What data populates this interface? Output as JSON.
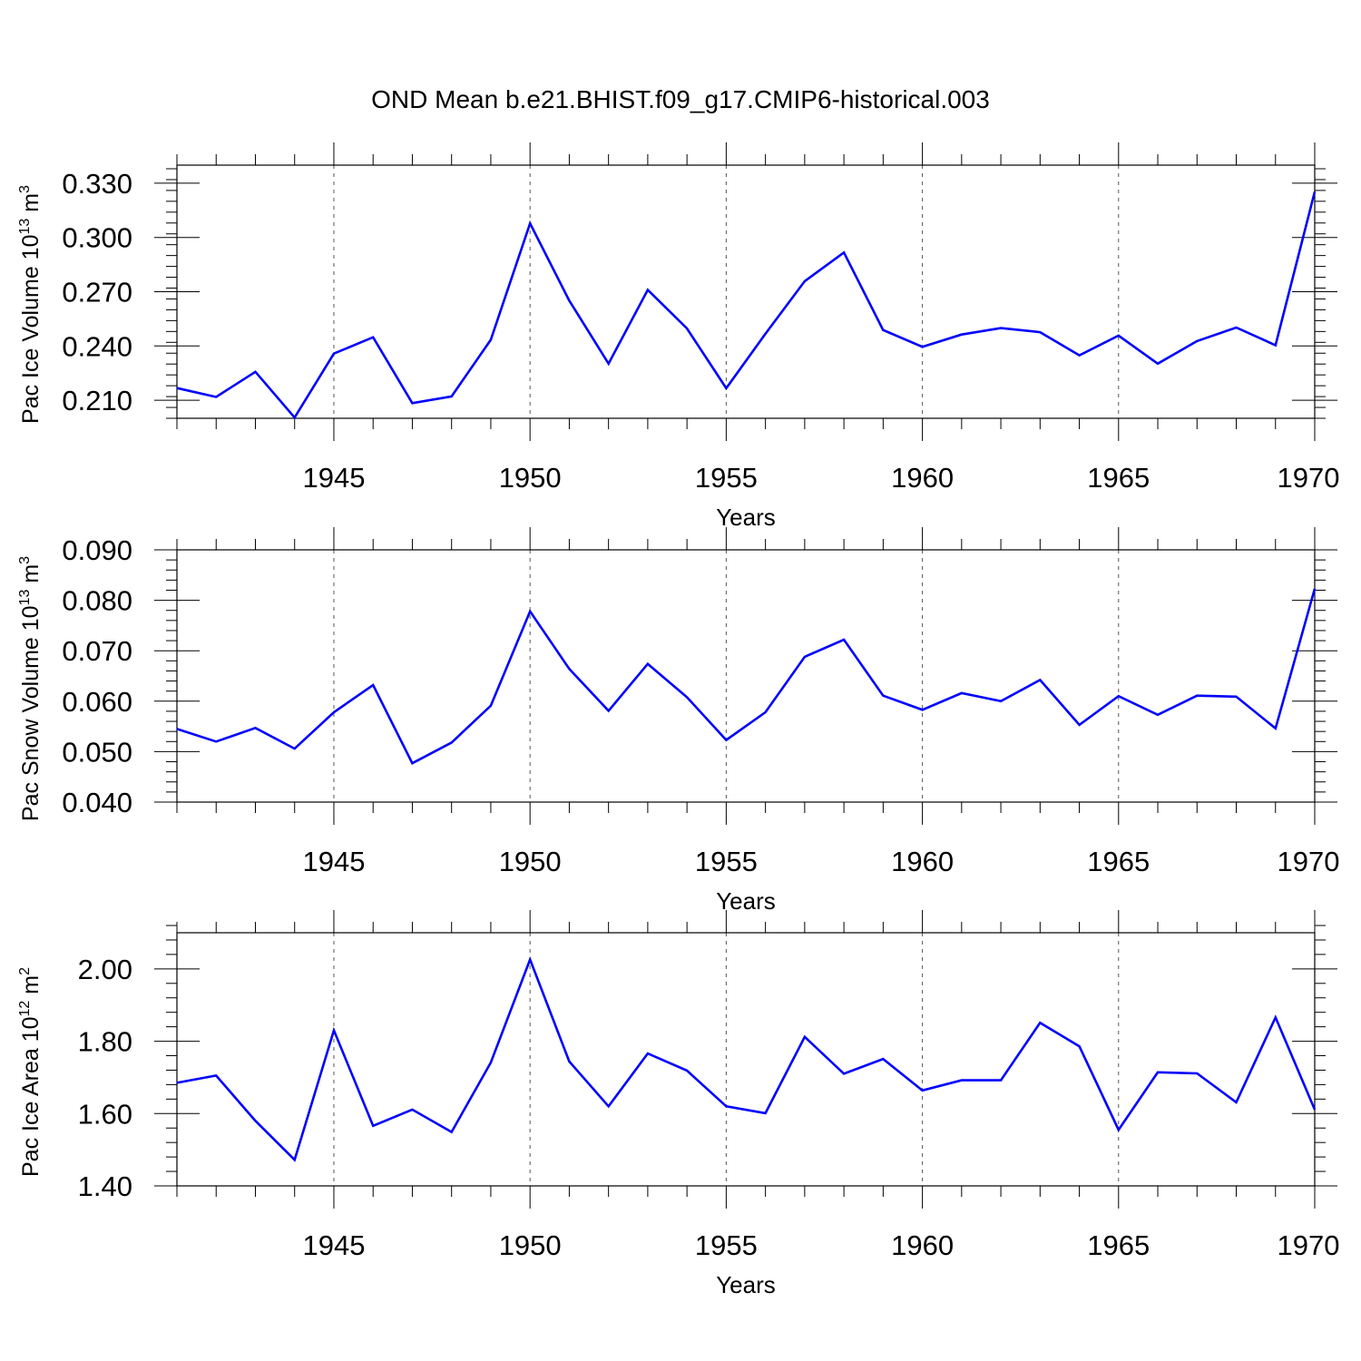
{
  "title": "OND Mean b.e21.BHIST.f09_g17.CMIP6-historical.003",
  "colors": {
    "line": "#0000ff",
    "axis": "#000000",
    "grid": "#555555"
  },
  "chart_data": [
    {
      "type": "line",
      "ylabel": "Pac Ice Volume",
      "ylabel_unit_base": "10",
      "ylabel_unit_exp": "13",
      "ylabel_unit_name": "m",
      "ylabel_unit_name_exp": "3",
      "xlabel": "Years",
      "xlim": [
        1941,
        1970
      ],
      "ylim": [
        0.2,
        0.34
      ],
      "yticks": [
        0.21,
        0.24,
        0.27,
        0.3,
        0.33
      ],
      "ytick_labels": [
        "0.210",
        "0.240",
        "0.270",
        "0.300",
        "0.330"
      ],
      "yminor_step": 0.006,
      "xticks": [
        1945,
        1950,
        1955,
        1960,
        1965,
        1970
      ],
      "xtick_labels": [
        "1945",
        "1950",
        "1955",
        "1960",
        "1965",
        "1970"
      ],
      "grid": "vertical dashed at major x ticks",
      "x": [
        1941,
        1942,
        1943,
        1944,
        1945,
        1946,
        1947,
        1948,
        1949,
        1950,
        1951,
        1952,
        1953,
        1954,
        1955,
        1956,
        1957,
        1958,
        1959,
        1960,
        1961,
        1962,
        1963,
        1964,
        1965,
        1966,
        1967,
        1968,
        1969,
        1970
      ],
      "values": [
        0.2167,
        0.2118,
        0.2257,
        0.2004,
        0.2358,
        0.2448,
        0.2084,
        0.2121,
        0.2434,
        0.3078,
        0.2651,
        0.2302,
        0.271,
        0.2497,
        0.2166,
        0.2467,
        0.2758,
        0.2917,
        0.2488,
        0.2395,
        0.2463,
        0.2499,
        0.2476,
        0.2348,
        0.2457,
        0.2302,
        0.2427,
        0.2502,
        0.2404,
        0.3253
      ]
    },
    {
      "type": "line",
      "ylabel": "Pac Snow Volume",
      "ylabel_unit_base": "10",
      "ylabel_unit_exp": "13",
      "ylabel_unit_name": "m",
      "ylabel_unit_name_exp": "3",
      "xlabel": "Years",
      "xlim": [
        1941,
        1970
      ],
      "ylim": [
        0.04,
        0.09
      ],
      "yticks": [
        0.04,
        0.05,
        0.06,
        0.07,
        0.08,
        0.09
      ],
      "ytick_labels": [
        "0.040",
        "0.050",
        "0.060",
        "0.070",
        "0.080",
        "0.090"
      ],
      "yminor_step": 0.002,
      "xticks": [
        1945,
        1950,
        1955,
        1960,
        1965,
        1970
      ],
      "xtick_labels": [
        "1945",
        "1950",
        "1955",
        "1960",
        "1965",
        "1970"
      ],
      "grid": "vertical dashed at major x ticks",
      "x": [
        1941,
        1942,
        1943,
        1944,
        1945,
        1946,
        1947,
        1948,
        1949,
        1950,
        1951,
        1952,
        1953,
        1954,
        1955,
        1956,
        1957,
        1958,
        1959,
        1960,
        1961,
        1962,
        1963,
        1964,
        1965,
        1966,
        1967,
        1968,
        1969,
        1970
      ],
      "values": [
        0.0545,
        0.052,
        0.0547,
        0.0506,
        0.0578,
        0.0632,
        0.0477,
        0.0518,
        0.0591,
        0.0778,
        0.0664,
        0.0581,
        0.0674,
        0.0608,
        0.0523,
        0.0578,
        0.0688,
        0.0722,
        0.0611,
        0.0583,
        0.0616,
        0.06,
        0.0642,
        0.0553,
        0.061,
        0.0573,
        0.0611,
        0.0609,
        0.0546,
        0.0823
      ]
    },
    {
      "type": "line",
      "ylabel": "Pac Ice Area",
      "ylabel_unit_base": "10",
      "ylabel_unit_exp": "12",
      "ylabel_unit_name": "m",
      "ylabel_unit_name_exp": "2",
      "xlabel": "Years",
      "xlim": [
        1941,
        1970
      ],
      "ylim": [
        1.4,
        2.1
      ],
      "yticks": [
        1.4,
        1.6,
        1.8,
        2.0
      ],
      "ytick_labels": [
        "1.40",
        "1.60",
        "1.80",
        "2.00"
      ],
      "yminor_step": 0.04,
      "xticks": [
        1945,
        1950,
        1955,
        1960,
        1965,
        1970
      ],
      "xtick_labels": [
        "1945",
        "1950",
        "1955",
        "1960",
        "1965",
        "1970"
      ],
      "grid": "vertical dashed at major x ticks",
      "x": [
        1941,
        1942,
        1943,
        1944,
        1945,
        1946,
        1947,
        1948,
        1949,
        1950,
        1951,
        1952,
        1953,
        1954,
        1955,
        1956,
        1957,
        1958,
        1959,
        1960,
        1961,
        1962,
        1963,
        1964,
        1965,
        1966,
        1967,
        1968,
        1969,
        1970
      ],
      "values": [
        1.685,
        1.705,
        1.58,
        1.472,
        1.83,
        1.566,
        1.611,
        1.549,
        1.741,
        2.026,
        1.744,
        1.62,
        1.766,
        1.719,
        1.62,
        1.601,
        1.812,
        1.71,
        1.751,
        1.664,
        1.692,
        1.692,
        1.851,
        1.786,
        1.555,
        1.714,
        1.711,
        1.631,
        1.866,
        1.611
      ]
    }
  ]
}
